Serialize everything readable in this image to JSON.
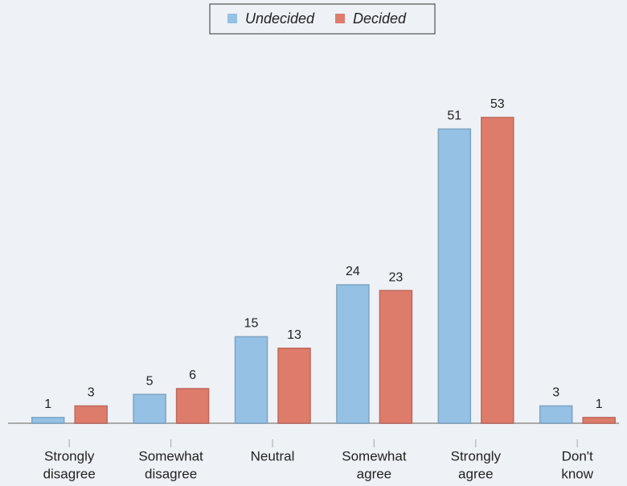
{
  "chart_data": {
    "type": "bar",
    "categories": [
      [
        "Strongly",
        "disagree"
      ],
      [
        "Somewhat",
        "disagree"
      ],
      [
        "Neutral"
      ],
      [
        "Somewhat",
        "agree"
      ],
      [
        "Strongly",
        "agree"
      ],
      [
        "Don't",
        "know"
      ]
    ],
    "series": [
      {
        "name": "Undecided",
        "color": "#94c1e4",
        "values": [
          1,
          5,
          15,
          24,
          51,
          3
        ]
      },
      {
        "name": "Decided",
        "color": "#de7c6c",
        "values": [
          3,
          6,
          13,
          23,
          53,
          1
        ]
      }
    ],
    "legend": "top"
  }
}
